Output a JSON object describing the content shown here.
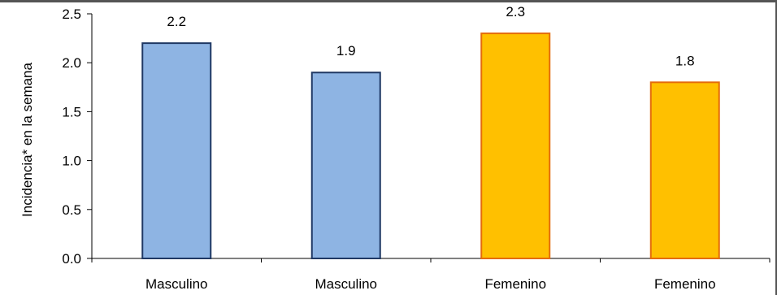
{
  "chart_data": {
    "type": "bar",
    "title": "",
    "xlabel": "",
    "ylabel": "Incidencia* en la semana",
    "ylim": [
      0,
      2.5
    ],
    "yticks": [
      "0.0",
      "0.5",
      "1.0",
      "1.5",
      "2.0",
      "2.5"
    ],
    "grid": false,
    "categories": [
      "Masculino",
      "Masculino",
      "Femenino",
      "Femenino"
    ],
    "values": [
      2.2,
      1.9,
      2.3,
      1.8
    ],
    "data_labels": [
      "2.2",
      "1.9",
      "2.3",
      "1.8"
    ],
    "colors": [
      "#8EB4E3",
      "#8EB4E3",
      "#FFC000",
      "#FFC000"
    ],
    "edge_colors": [
      "#1F3864",
      "#1F3864",
      "#E46C0A",
      "#E46C0A"
    ]
  }
}
